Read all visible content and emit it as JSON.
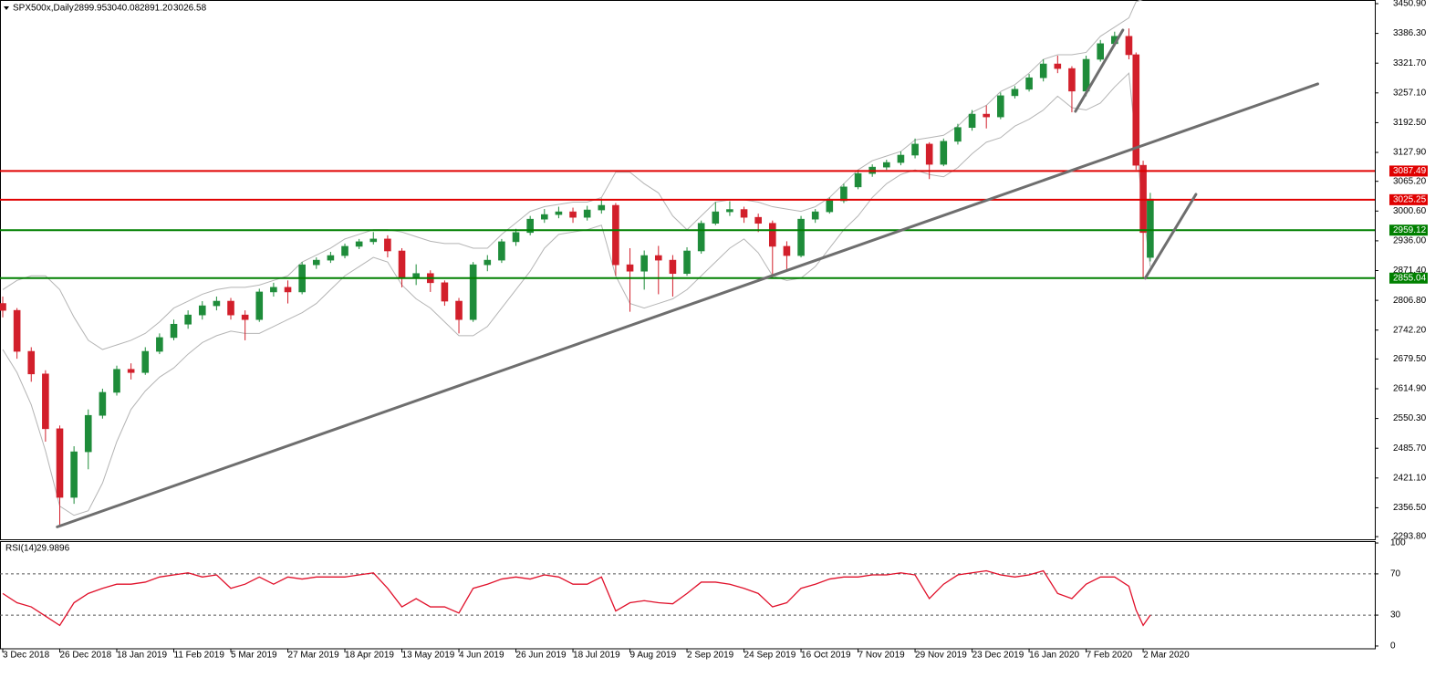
{
  "chart_data": [
    {
      "type": "candlestick",
      "title": "SPX500x,Daily",
      "header_labels": [
        "2899.95",
        "3040.08",
        "2891.20",
        "3026.58"
      ],
      "up_color": "#1e8c3a",
      "down_color": "#d21f2b",
      "band_color": "#b4b4b4",
      "x": [
        0,
        4,
        8,
        12,
        16,
        20,
        24,
        28,
        32,
        36,
        40,
        44,
        48,
        52,
        56,
        60,
        64,
        68,
        72,
        76,
        80,
        84,
        88,
        92,
        96,
        100,
        104,
        108,
        112,
        116,
        120,
        124,
        128,
        132,
        136,
        140,
        144,
        148,
        152,
        156,
        160,
        164,
        168,
        172,
        176,
        180,
        184,
        188,
        192,
        196,
        200,
        204,
        208,
        212,
        216,
        220,
        224,
        228,
        232,
        236,
        240,
        244,
        248,
        252,
        256,
        260,
        264,
        268,
        272,
        276,
        280,
        284,
        288,
        292,
        296,
        300,
        304,
        308,
        312,
        316,
        318,
        320,
        322
      ],
      "open": [
        2800,
        2785,
        2696,
        2647,
        2528,
        2379,
        2478,
        2557,
        2607,
        2657,
        2650,
        2696,
        2726,
        2755,
        2775,
        2795,
        2805,
        2775,
        2765,
        2825,
        2835,
        2825,
        2884,
        2894,
        2904,
        2924,
        2934,
        2940,
        2914,
        2855,
        2865,
        2845,
        2805,
        2765,
        2884,
        2894,
        2934,
        2954,
        2983,
        2993,
        2999,
        2987,
        3003,
        3013,
        2884,
        2870,
        2904,
        2894,
        2865,
        2914,
        2974,
        2999,
        3004,
        2987,
        2974,
        2924,
        2904,
        2983,
        2999,
        3023,
        3053,
        3082,
        3096,
        3106,
        3122,
        3146,
        3102,
        3152,
        3182,
        3211,
        3205,
        3251,
        3265,
        3290,
        3320,
        3310,
        3261,
        3330,
        3364,
        3380,
        3340,
        3100,
        2899.95
      ],
      "high": [
        2815,
        2790,
        2705,
        2655,
        2535,
        2490,
        2570,
        2615,
        2665,
        2670,
        2705,
        2735,
        2765,
        2785,
        2805,
        2815,
        2812,
        2785,
        2832,
        2845,
        2850,
        2890,
        2900,
        2912,
        2930,
        2940,
        2955,
        2948,
        2920,
        2885,
        2872,
        2850,
        2812,
        2890,
        2905,
        2940,
        2962,
        2990,
        3005,
        3010,
        3008,
        3012,
        3028,
        3018,
        2920,
        2915,
        2925,
        2905,
        2922,
        2980,
        3020,
        3022,
        3010,
        2995,
        2980,
        2935,
        2990,
        3005,
        3030,
        3060,
        3090,
        3102,
        3112,
        3130,
        3158,
        3150,
        3158,
        3190,
        3220,
        3230,
        3258,
        3272,
        3298,
        3330,
        3338,
        3315,
        3338,
        3372,
        3390,
        3397,
        3345,
        3110,
        3040.08
      ],
      "low": [
        2770,
        2680,
        2630,
        2500,
        2316,
        2365,
        2440,
        2550,
        2600,
        2635,
        2645,
        2690,
        2720,
        2745,
        2765,
        2785,
        2765,
        2720,
        2760,
        2815,
        2800,
        2820,
        2875,
        2888,
        2898,
        2918,
        2928,
        2900,
        2835,
        2840,
        2825,
        2795,
        2735,
        2760,
        2870,
        2888,
        2925,
        2948,
        2975,
        2985,
        2975,
        2980,
        2995,
        2860,
        2782,
        2830,
        2820,
        2815,
        2860,
        2908,
        2970,
        2990,
        2975,
        2955,
        2855,
        2870,
        2900,
        2975,
        2995,
        3018,
        3048,
        3075,
        3090,
        3100,
        3115,
        3070,
        3098,
        3145,
        3175,
        3180,
        3200,
        3245,
        3260,
        3282,
        3300,
        3215,
        3250,
        3325,
        3358,
        3330,
        3090,
        2855,
        2891.2
      ],
      "close": [
        2785,
        2696,
        2647,
        2528,
        2379,
        2478,
        2557,
        2607,
        2657,
        2650,
        2696,
        2726,
        2755,
        2775,
        2795,
        2805,
        2775,
        2765,
        2825,
        2835,
        2825,
        2884,
        2894,
        2904,
        2924,
        2934,
        2940,
        2914,
        2855,
        2865,
        2845,
        2805,
        2765,
        2884,
        2894,
        2934,
        2954,
        2983,
        2993,
        2999,
        2987,
        3003,
        3013,
        2884,
        2870,
        2904,
        2894,
        2865,
        2914,
        2974,
        2999,
        3004,
        2987,
        2974,
        2924,
        2904,
        2983,
        2999,
        3023,
        3053,
        3082,
        3096,
        3106,
        3122,
        3146,
        3102,
        3152,
        3182,
        3211,
        3205,
        3251,
        3265,
        3290,
        3320,
        3310,
        3261,
        3330,
        3364,
        3380,
        3340,
        3100,
        2954,
        3026.58
      ],
      "bollinger_upper": [
        2830,
        2850,
        2860,
        2860,
        2830,
        2770,
        2720,
        2700,
        2710,
        2720,
        2735,
        2760,
        2790,
        2805,
        2820,
        2830,
        2835,
        2835,
        2840,
        2850,
        2860,
        2890,
        2905,
        2920,
        2940,
        2950,
        2960,
        2960,
        2955,
        2945,
        2935,
        2930,
        2930,
        2920,
        2920,
        2950,
        2975,
        3000,
        3010,
        3015,
        3020,
        3020,
        3030,
        3085,
        3085,
        3060,
        3040,
        2990,
        2960,
        2990,
        3020,
        3025,
        3025,
        3020,
        3010,
        3005,
        3000,
        3010,
        3030,
        3060,
        3090,
        3110,
        3120,
        3130,
        3155,
        3160,
        3165,
        3185,
        3215,
        3230,
        3260,
        3275,
        3300,
        3330,
        3340,
        3340,
        3345,
        3380,
        3400,
        3420,
        3455,
        3460,
        3465
      ],
      "bollinger_lower": [
        2700,
        2650,
        2580,
        2480,
        2360,
        2340,
        2350,
        2410,
        2500,
        2570,
        2610,
        2640,
        2660,
        2690,
        2715,
        2730,
        2740,
        2735,
        2735,
        2750,
        2765,
        2780,
        2800,
        2830,
        2860,
        2880,
        2900,
        2890,
        2840,
        2810,
        2790,
        2760,
        2730,
        2730,
        2750,
        2790,
        2830,
        2870,
        2920,
        2950,
        2955,
        2960,
        2970,
        2860,
        2800,
        2790,
        2800,
        2810,
        2830,
        2860,
        2890,
        2920,
        2940,
        2910,
        2860,
        2850,
        2855,
        2880,
        2920,
        2960,
        2990,
        3030,
        3060,
        3080,
        3090,
        3080,
        3075,
        3095,
        3125,
        3150,
        3160,
        3185,
        3200,
        3220,
        3250,
        3225,
        3220,
        3235,
        3270,
        3300,
        3150,
        3000,
        2880
      ],
      "xlim": [
        0,
        385
      ],
      "ylim": [
        2288,
        3458.8
      ],
      "yticks": [
        {
          "value": 3450.9,
          "label": "3450.90"
        },
        {
          "value": 3386.3,
          "label": "3386.30"
        },
        {
          "value": 3321.7,
          "label": "3321.70"
        },
        {
          "value": 3257.1,
          "label": "3257.10"
        },
        {
          "value": 3192.5,
          "label": "3192.50"
        },
        {
          "value": 3127.9,
          "label": "3127.90"
        },
        {
          "value": 3065.2,
          "label": "3065.20"
        },
        {
          "value": 3000.6,
          "label": "3000.60"
        },
        {
          "value": 2936,
          "label": "2936.00"
        },
        {
          "value": 2871.4,
          "label": "2871.40"
        },
        {
          "value": 2806.8,
          "label": "2806.80"
        },
        {
          "value": 2742.2,
          "label": "2742.20"
        },
        {
          "value": 2679.5,
          "label": "2679.50"
        },
        {
          "value": 2614.9,
          "label": "2614.90"
        },
        {
          "value": 2550.3,
          "label": "2550.30"
        },
        {
          "value": 2485.7,
          "label": "2485.70"
        },
        {
          "value": 2421.1,
          "label": "2421.10"
        },
        {
          "value": 2356.5,
          "label": "2356.50"
        },
        {
          "value": 2293.8,
          "label": "2293.80"
        }
      ],
      "xticks": [
        {
          "value": 0,
          "label": "3 Dec 2018"
        },
        {
          "value": 16,
          "label": "26 Dec 2018"
        },
        {
          "value": 32,
          "label": "18 Jan 2019"
        },
        {
          "value": 48,
          "label": "11 Feb 2019"
        },
        {
          "value": 64,
          "label": "5 Mar 2019"
        },
        {
          "value": 80,
          "label": "27 Mar 2019"
        },
        {
          "value": 96,
          "label": "18 Apr 2019"
        },
        {
          "value": 112,
          "label": "13 May 2019"
        },
        {
          "value": 128,
          "label": "4 Jun 2019"
        },
        {
          "value": 144,
          "label": "26 Jun 2019"
        },
        {
          "value": 160,
          "label": "18 Jul 2019"
        },
        {
          "value": 176,
          "label": "9 Aug 2019"
        },
        {
          "value": 192,
          "label": "2 Sep 2019"
        },
        {
          "value": 208,
          "label": "24 Sep 2019"
        },
        {
          "value": 224,
          "label": "16 Oct 2019"
        },
        {
          "value": 240,
          "label": "7 Nov 2019"
        },
        {
          "value": 256,
          "label": "29 Nov 2019"
        },
        {
          "value": 272,
          "label": "23 Dec 2019"
        },
        {
          "value": 288,
          "label": "16 Jan 2020"
        },
        {
          "value": 304,
          "label": "7 Feb 2020"
        },
        {
          "value": 320,
          "label": "2 Mar 2020"
        }
      ],
      "levels": [
        {
          "value": 3087.49,
          "color": "#e00000"
        },
        {
          "value": 3025.25,
          "color": "#e00000"
        },
        {
          "value": 2959.12,
          "color": "#008000"
        },
        {
          "value": 2855.04,
          "color": "#008000"
        }
      ],
      "trendlines": [
        {
          "x": [
            15.3,
            369
          ],
          "y": [
            2315,
            3276.6
          ],
          "color": "#6e6e6e"
        },
        {
          "x": [
            301,
            314.3
          ],
          "y": [
            3217,
            3393.5
          ],
          "color": "#6e6e6e"
        },
        {
          "x": [
            320.6,
            334.8
          ],
          "y": [
            2855,
            3036.9
          ],
          "color": "#6e6e6e"
        }
      ]
    },
    {
      "type": "line",
      "title": "RSI(14)",
      "x": [
        0,
        4,
        8,
        12,
        16,
        20,
        24,
        28,
        32,
        36,
        40,
        44,
        48,
        52,
        56,
        60,
        64,
        68,
        72,
        76,
        80,
        84,
        88,
        92,
        96,
        100,
        104,
        108,
        112,
        116,
        120,
        124,
        128,
        132,
        136,
        140,
        144,
        148,
        152,
        156,
        160,
        164,
        168,
        172,
        176,
        180,
        184,
        188,
        192,
        196,
        200,
        204,
        208,
        212,
        216,
        220,
        224,
        228,
        232,
        236,
        240,
        244,
        248,
        252,
        256,
        260,
        264,
        268,
        272,
        276,
        280,
        284,
        288,
        292,
        296,
        300,
        304,
        308,
        312,
        316,
        318,
        320,
        322
      ],
      "series": [
        {
          "color": "#e0102a",
          "values": [
            51,
            42,
            38,
            29,
            20,
            42,
            51,
            56,
            60,
            60,
            62,
            67,
            69,
            71,
            67,
            69,
            56,
            60,
            67,
            60,
            67,
            65,
            67,
            67,
            67,
            69,
            71,
            56,
            38,
            46,
            38,
            38,
            32,
            56,
            60,
            65,
            67,
            65,
            69,
            67,
            60,
            60,
            67,
            34,
            42,
            44,
            42,
            41,
            51,
            62,
            62,
            60,
            56,
            51,
            38,
            42,
            56,
            60,
            65,
            67,
            67,
            69,
            69,
            71,
            69,
            46,
            60,
            69,
            71,
            73,
            69,
            67,
            69,
            73,
            51,
            46,
            60,
            67,
            67,
            58,
            35,
            20,
            29.9896
          ]
        }
      ],
      "xlim": [
        0,
        385
      ],
      "ylim": [
        -2.7,
        101.8
      ],
      "yticks": [
        100,
        70,
        30,
        0
      ],
      "levels": [
        70,
        30
      ]
    }
  ]
}
